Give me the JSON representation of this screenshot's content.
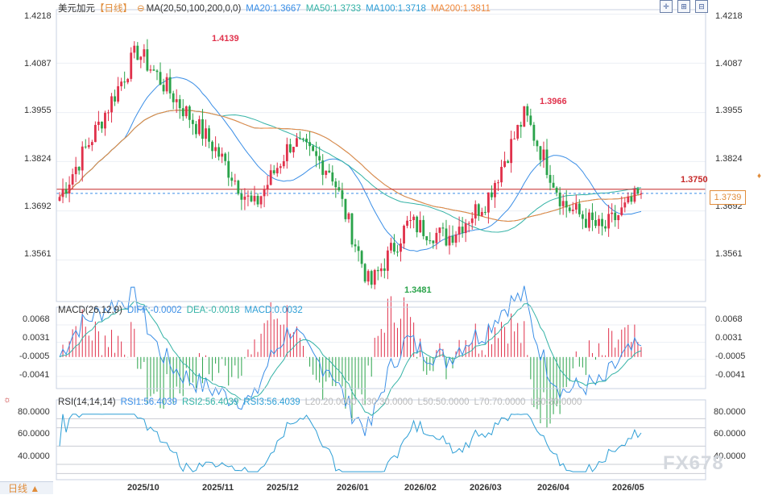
{
  "header": {
    "symbol": "美元加元",
    "period": "【日线】",
    "ma_label": "MA(20,50,100,200,0,0)",
    "ma20": "MA20:1.3667",
    "ma50": "MA50:1.3733",
    "ma100": "MA100:1.3718",
    "ma200": "MA200:1.3811"
  },
  "macd_header": {
    "label": "MACD(26,12,9)",
    "diff": "DIFF:-0.0002",
    "dea": "DEA:-0.0018",
    "macd": "MACD:0.0032"
  },
  "rsi_header": {
    "label": "RSI(14,14,14)",
    "rsi1": "RSI1:56.4039",
    "rsi2": "RSI2:56.4039",
    "rsi3": "RSI3:56.4039",
    "l20": "L20:20.0000",
    "l30": "L30:30.0000",
    "l50": "L50:50.0000",
    "l70": "L70:70.0000",
    "l80": "L80:80.0000"
  },
  "price_axis": [
    "1.4218",
    "1.4087",
    "1.3955",
    "1.3824",
    "1.3692",
    "1.3561"
  ],
  "macd_axis": [
    "0.0068",
    "0.0031",
    "-0.0005",
    "-0.0041"
  ],
  "rsi_axis": [
    "80.0000",
    "60.0000",
    "40.0000"
  ],
  "x_axis": [
    "2025/10",
    "2025/11",
    "2025/12",
    "2026/01",
    "2026/02",
    "2026/03",
    "2026/04",
    "2026/05"
  ],
  "annotations": {
    "high1": "1.4139",
    "high2": "1.3966",
    "low1": "1.3481",
    "line_price": "1.3750",
    "last_price": "1.3739"
  },
  "period_button": "日线 ▲",
  "watermark": "FX678",
  "colors": {
    "up": "#e0314b",
    "down": "#2aa34a",
    "ma20": "#3a8ee6",
    "ma50": "#35b3a6",
    "ma100": "#2e9fd6",
    "ma200": "#f0883a",
    "price_line": "#c62828"
  },
  "chart_data": {
    "type": "candlestick",
    "ylim": [
      1.345,
      1.423
    ],
    "grid": true,
    "anchors": [
      {
        "x": "2025/09",
        "y": 1.373
      },
      {
        "x": "2025/10",
        "y": 1.392
      },
      {
        "x": "2025/11",
        "y": 1.412
      },
      {
        "x": "2025/11",
        "y": 1.399
      },
      {
        "x": "2025/12",
        "y": 1.386
      },
      {
        "x": "2025/12",
        "y": 1.37
      },
      {
        "x": "2026/01",
        "y": 1.388
      },
      {
        "x": "2026/01",
        "y": 1.38
      },
      {
        "x": "2026/02",
        "y": 1.349
      },
      {
        "x": "2026/02",
        "y": 1.366
      },
      {
        "x": "2026/03",
        "y": 1.362
      },
      {
        "x": "2026/03",
        "y": 1.372
      },
      {
        "x": "2026/03",
        "y": 1.395
      },
      {
        "x": "2026/04",
        "y": 1.371
      },
      {
        "x": "2026/04",
        "y": 1.364
      },
      {
        "x": "2026/05",
        "y": 1.3739
      }
    ],
    "ma_series": [
      {
        "name": "MA20",
        "value": 1.3667
      },
      {
        "name": "MA50",
        "value": 1.3733
      },
      {
        "name": "MA100",
        "value": 1.3718
      },
      {
        "name": "MA200",
        "value": 1.3811
      }
    ],
    "macd": {
      "diff": -0.0002,
      "dea": -0.0018,
      "macd": 0.0032,
      "ylim": [
        -0.006,
        0.0085
      ]
    },
    "rsi": {
      "rsi1": 56.4039,
      "levels": [
        20,
        30,
        50,
        70,
        80
      ],
      "ylim": [
        15,
        90
      ]
    }
  }
}
